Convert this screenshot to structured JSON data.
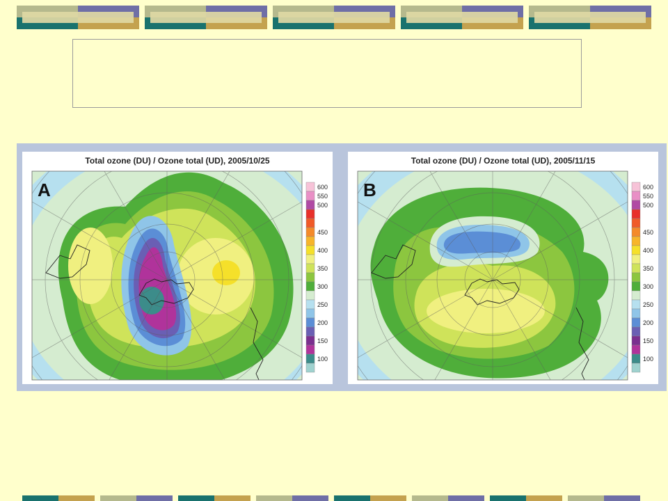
{
  "slide": {
    "title_text": ""
  },
  "maps": [
    {
      "label": "A",
      "title": "Total ozone (DU) / Ozone total (UD), 2005/10/25"
    },
    {
      "label": "B",
      "title": "Total ozone (DU) / Ozone total (UD), 2005/11/15"
    }
  ],
  "legend": {
    "unit": "DU",
    "levels": [
      {
        "value": "600",
        "color": "#f7c3d8"
      },
      {
        "value": "550",
        "color": "#e98fc6"
      },
      {
        "value": "500",
        "color": "#b04aa4"
      },
      {
        "value": "500",
        "color": "#e8302a"
      },
      {
        "value": "500",
        "color": "#f05a28"
      },
      {
        "value": "450",
        "color": "#f48a2a"
      },
      {
        "value": "450",
        "color": "#f7b52a"
      },
      {
        "value": "400",
        "color": "#f5e02a"
      },
      {
        "value": "400",
        "color": "#f0f080"
      },
      {
        "value": "350",
        "color": "#cfe35a"
      },
      {
        "value": "350",
        "color": "#8cc63f"
      },
      {
        "value": "300",
        "color": "#4fae3a"
      },
      {
        "value": "300",
        "color": "#d5ecd0"
      },
      {
        "value": "250",
        "color": "#b6e0ef"
      },
      {
        "value": "250",
        "color": "#8fc5e8"
      },
      {
        "value": "200",
        "color": "#5b8ed6"
      },
      {
        "value": "200",
        "color": "#6a5fb4"
      },
      {
        "value": "150",
        "color": "#7b2f8f"
      },
      {
        "value": "150",
        "color": "#b0339b"
      },
      {
        "value": "100",
        "color": "#3c8c8a"
      },
      {
        "value": "100",
        "color": "#9fd2cf"
      }
    ]
  },
  "colors": {
    "background": "#ffffcc",
    "figure_frame": "#b9c5dc",
    "teal": "#19726e",
    "gold": "#c4a24f",
    "olive": "#b5b98d",
    "purple": "#6f6fa6"
  }
}
